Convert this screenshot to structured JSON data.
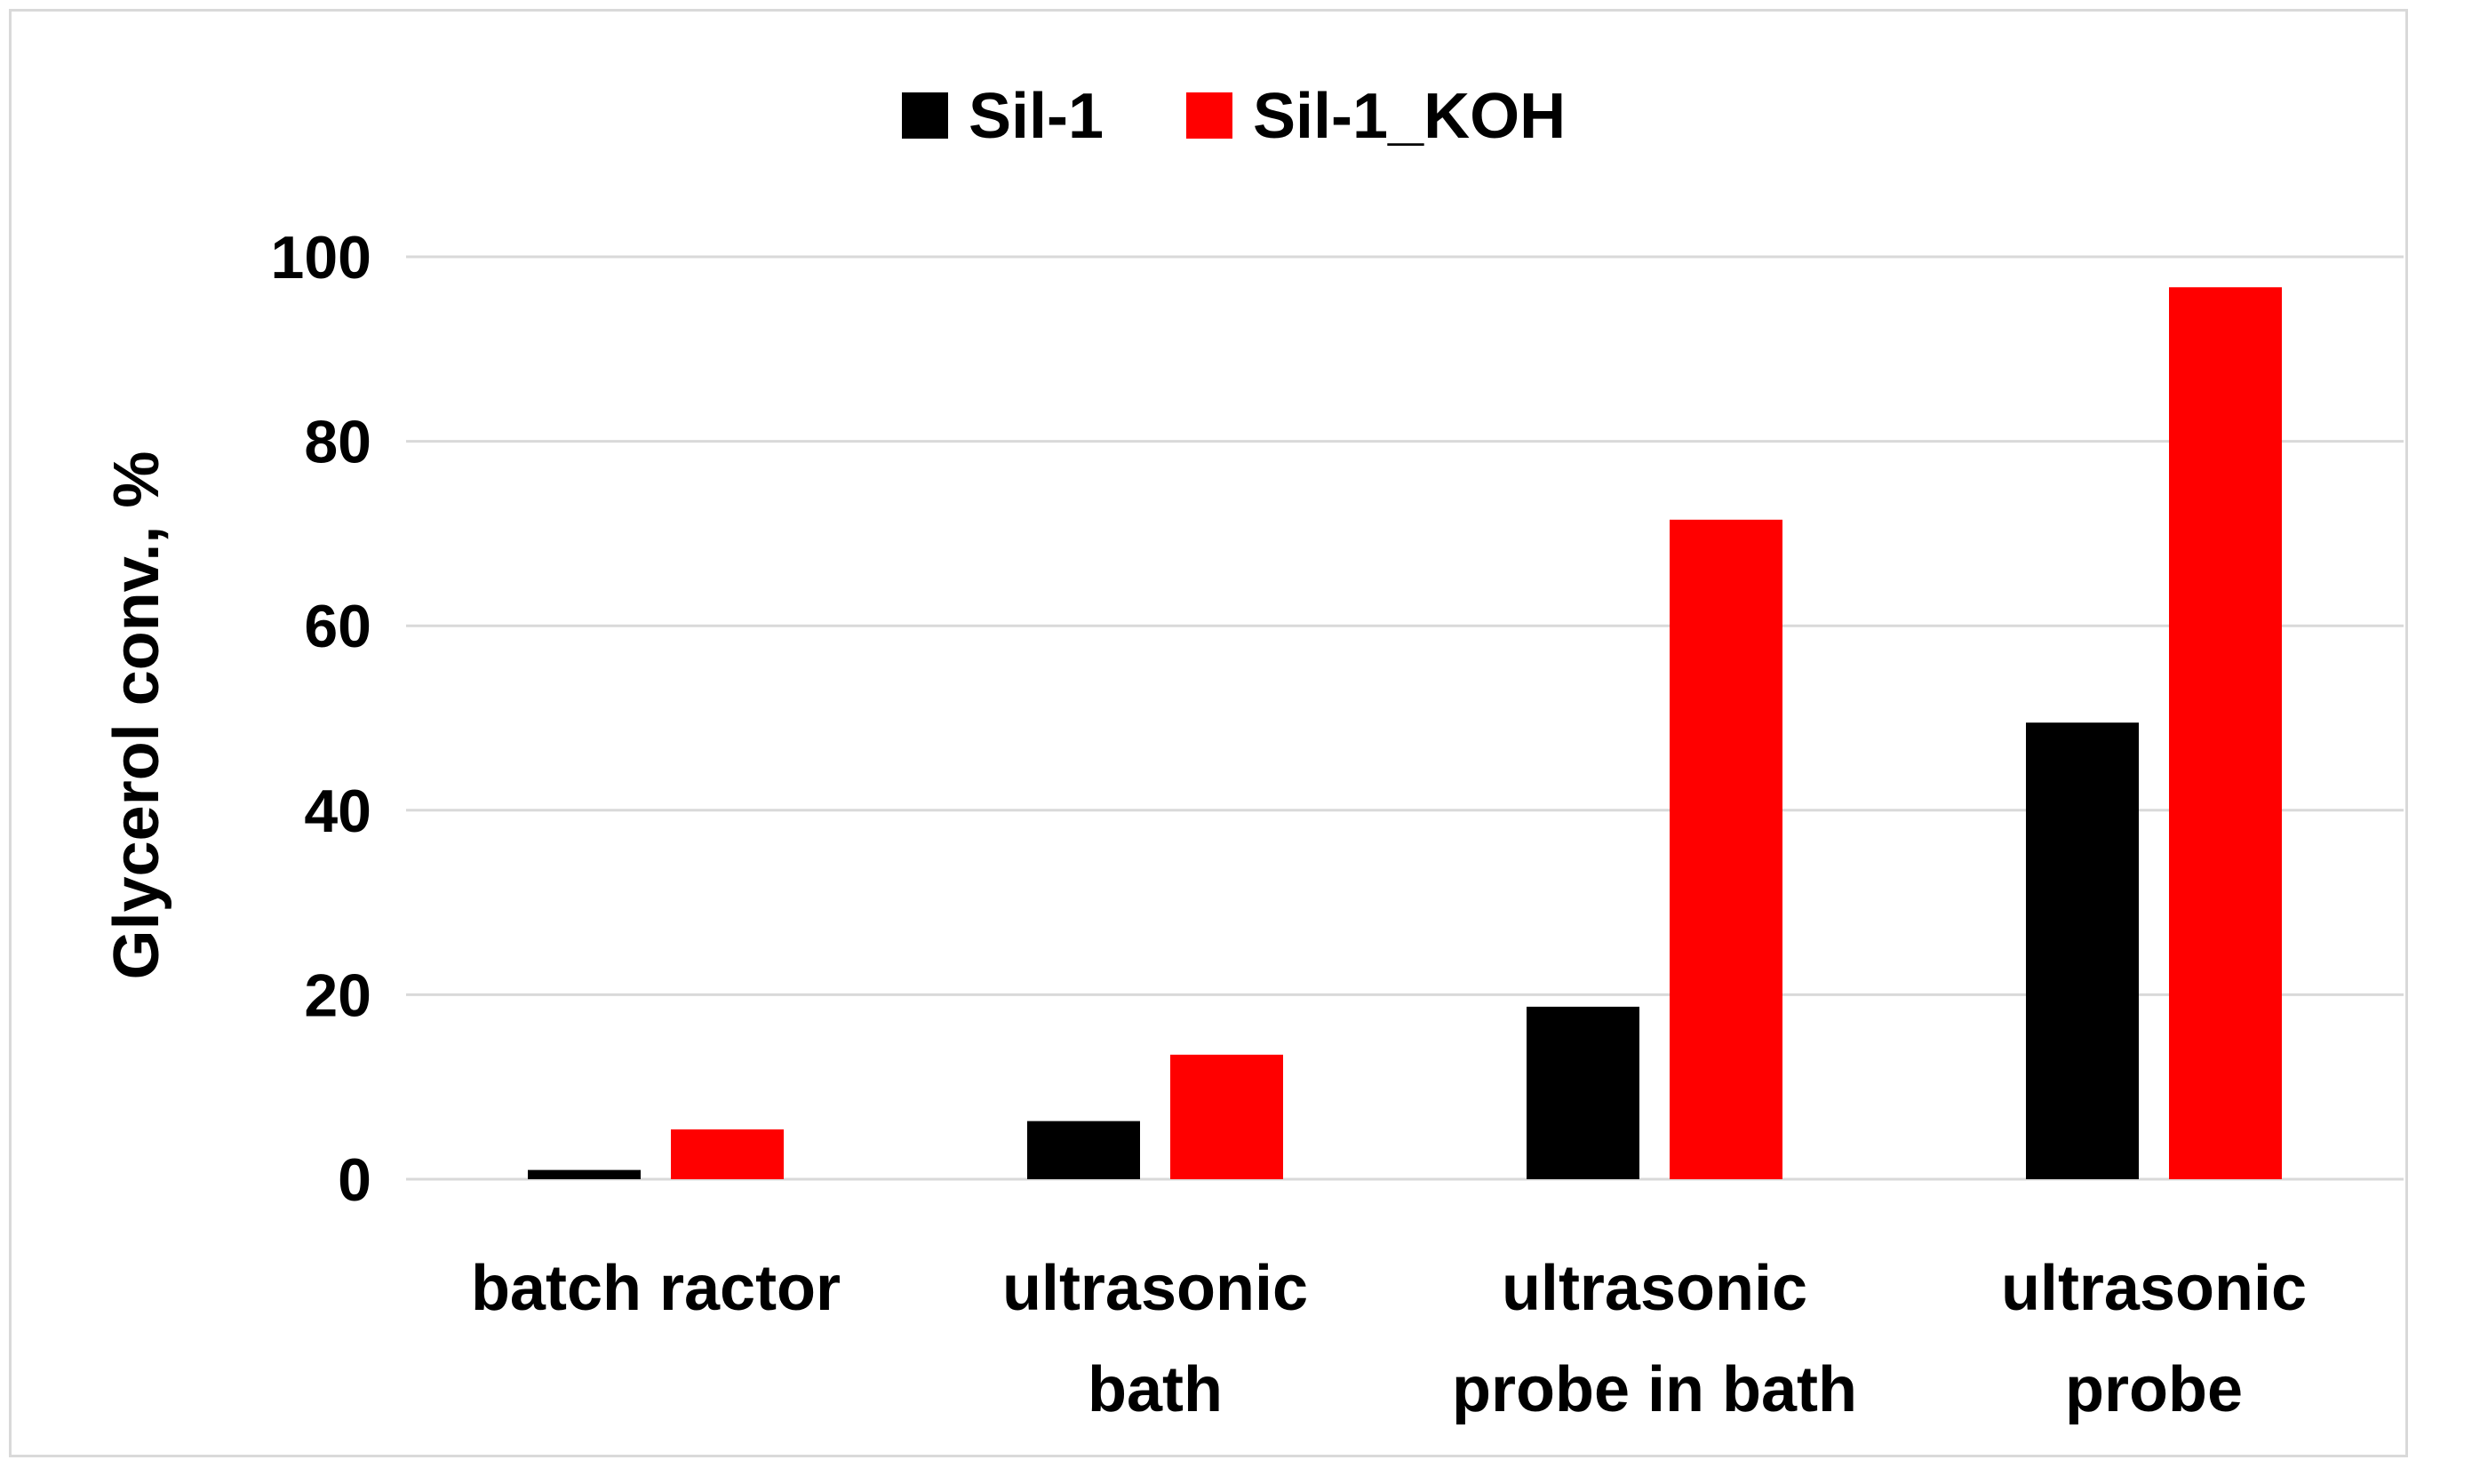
{
  "chart_data": {
    "type": "bar",
    "categories": [
      [
        "batch ractor"
      ],
      [
        "ultrasonic",
        "bath"
      ],
      [
        "ultrasonic",
        "probe in bath"
      ],
      [
        "ultrasonic",
        "probe"
      ]
    ],
    "series": [
      {
        "name": "Sil-1",
        "color": "#000000",
        "values": [
          1,
          6.3,
          18.7,
          49.5
        ]
      },
      {
        "name": "Sil-1_KOH",
        "color": "#ff0000",
        "values": [
          5.4,
          13.5,
          71.5,
          96.7
        ]
      }
    ],
    "title": "",
    "xlabel": "",
    "ylabel": "Glycerol conv., %",
    "ylim": [
      0,
      100
    ],
    "yticks": [
      0,
      20,
      40,
      60,
      80,
      100
    ],
    "grid": "horizontal",
    "gridColor": "#d9d9d9",
    "legend": "top-center"
  }
}
